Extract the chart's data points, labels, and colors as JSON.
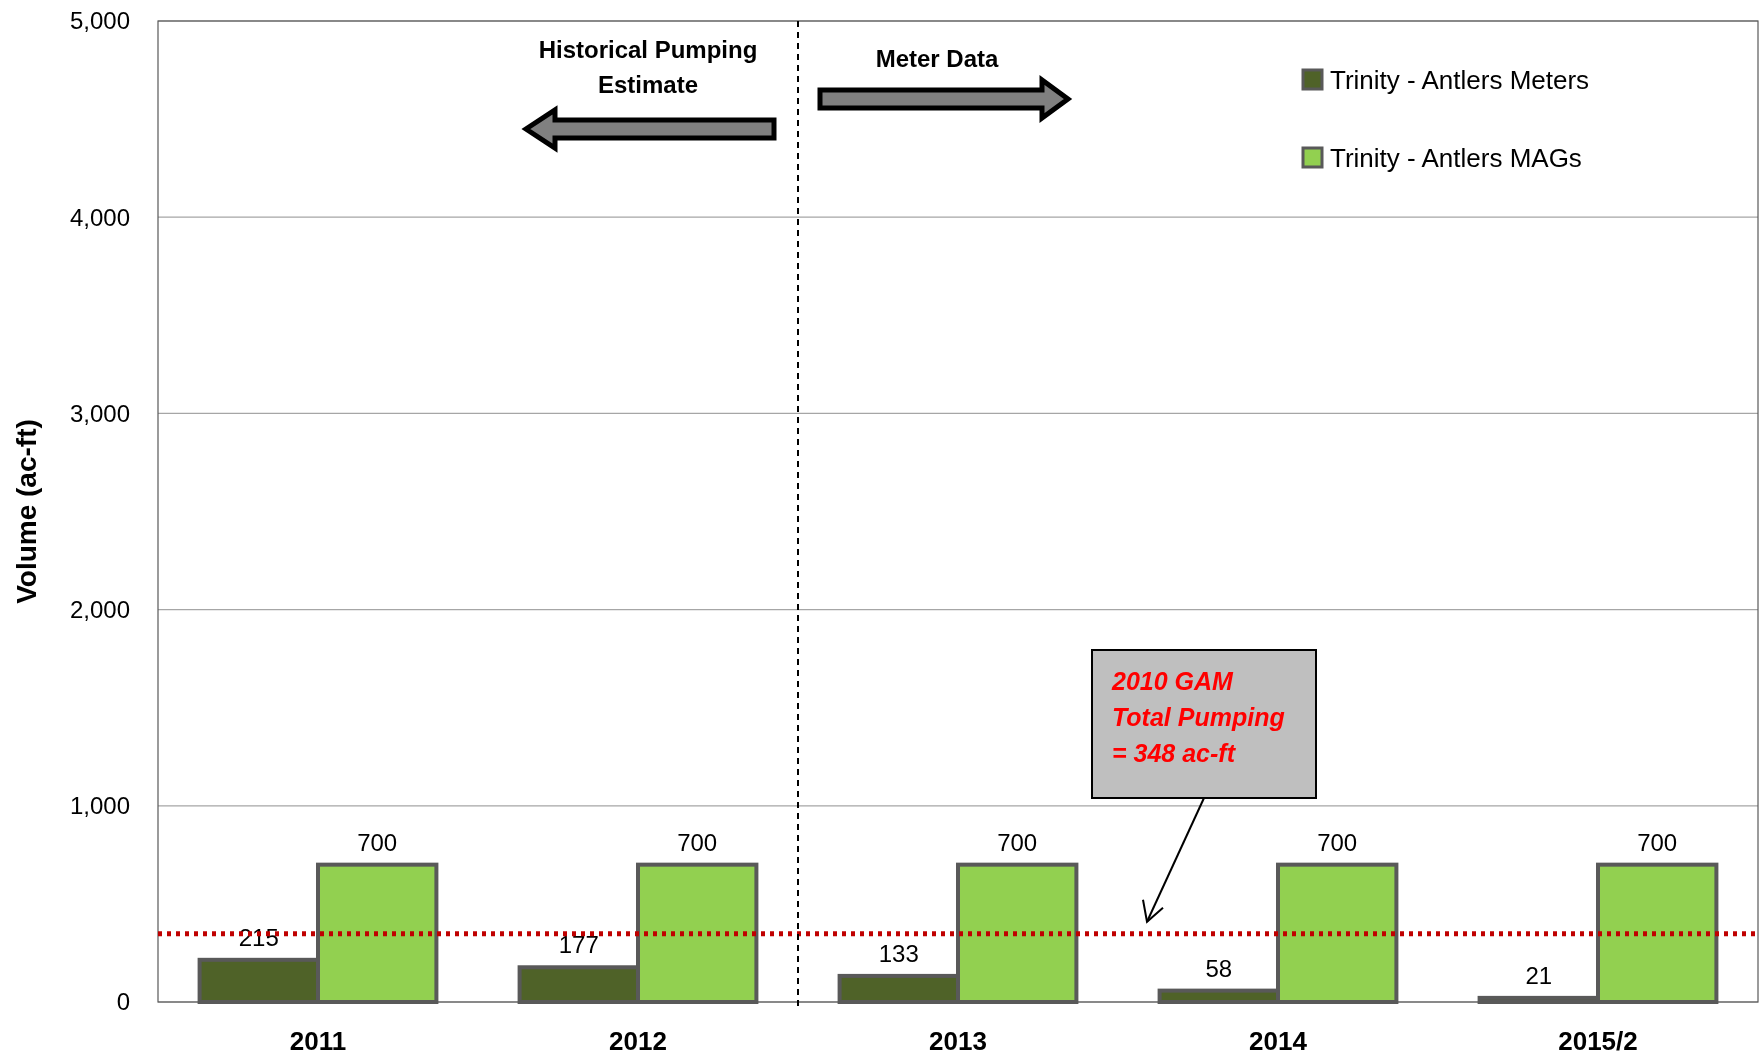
{
  "chart_data": {
    "type": "bar",
    "ylabel": "Volume (ac-ft)",
    "categories": [
      "2011",
      "2012",
      "2013",
      "2014",
      "2015/2"
    ],
    "series": [
      {
        "name": "Trinity - Antlers Meters",
        "color": "#4f6228",
        "values": [
          215,
          177,
          133,
          58,
          21
        ]
      },
      {
        "name": "Trinity - Antlers MAGs",
        "color": "#92d050",
        "values": [
          700,
          700,
          700,
          700,
          700
        ]
      }
    ],
    "ylim": [
      0,
      5000
    ],
    "yticks": [
      0,
      {
        "value": 1000,
        "label": "1,000"
      },
      {
        "value": 2000,
        "label": "2,000"
      },
      {
        "value": 3000,
        "label": "3,000"
      },
      {
        "value": 4000,
        "label": "4,000"
      },
      {
        "value": 5000,
        "label": "5,000"
      }
    ],
    "grid": "y",
    "legend": "top right",
    "data_labels": true,
    "ref_lines": [
      {
        "axis": "y",
        "value": 348,
        "color": "#c00000",
        "line_style": "dotted"
      }
    ],
    "annotations": [
      "Historical Pumping Estimate",
      "Meter Data",
      "2010 GAM Total Pumping = 348 ac-ft"
    ]
  }
}
